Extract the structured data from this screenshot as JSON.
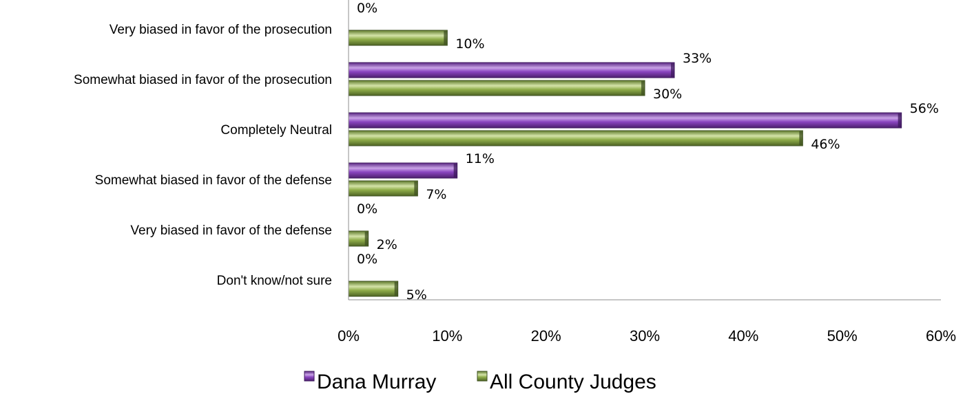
{
  "chart_data": {
    "type": "bar",
    "orientation": "horizontal",
    "title": "",
    "xlabel": "",
    "ylabel": "",
    "categories": [
      "Very biased in favor of the prosecution",
      "Somewhat biased in favor of the prosecution",
      "Completely Neutral",
      "Somewhat biased in favor of the defense",
      "Very biased in favor of the defense",
      "Don't know/not sure"
    ],
    "series": [
      {
        "name": "Dana Murray",
        "color": "#7030a0",
        "values": [
          0,
          33,
          56,
          11,
          0,
          0
        ],
        "labels": [
          "0%",
          "33%",
          "56%",
          "11%",
          "0%",
          "0%"
        ]
      },
      {
        "name": "All County Judges",
        "color": "#77933c",
        "values": [
          10,
          30,
          46,
          7,
          2,
          5
        ],
        "labels": [
          "10%",
          "30%",
          "46%",
          "7%",
          "2%",
          "5%"
        ]
      }
    ],
    "xlim": [
      0,
      60
    ],
    "x_ticks": [
      0,
      10,
      20,
      30,
      40,
      50,
      60
    ],
    "x_tick_labels": [
      "0%",
      "10%",
      "20%",
      "30%",
      "40%",
      "50%",
      "60%"
    ],
    "grid": false,
    "legend": {
      "position": "bottom",
      "entries": [
        "Dana Murray",
        "All County Judges"
      ]
    }
  }
}
